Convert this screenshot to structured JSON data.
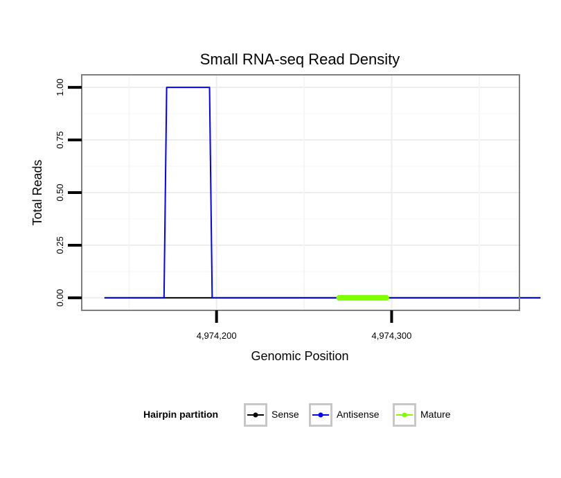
{
  "chart_data": {
    "type": "line",
    "title": "Small RNA-seq Read Density",
    "xlabel": "Genomic Position",
    "ylabel": "Total Reads",
    "xlim": [
      4974123,
      4974373
    ],
    "ylim": [
      -0.0595,
      1.0595
    ],
    "x_ticks": [
      4974200,
      4974300
    ],
    "x_tick_labels": [
      "4,974,200",
      "4,974,300"
    ],
    "y_ticks": [
      0,
      0.25,
      0.5,
      0.75,
      1
    ],
    "y_tick_labels": [
      "0.00",
      "0.25",
      "0.50",
      "0.75",
      "1.00"
    ],
    "grid": true,
    "legend_position": "bottom",
    "legend_title": "Hairpin partition",
    "series": [
      {
        "name": "Sense",
        "color": "#000000",
        "points": [
          [
            4974136,
            0
          ],
          [
            4974385,
            0
          ]
        ]
      },
      {
        "name": "Antisense",
        "color": "#0000ff",
        "points": [
          [
            4974136,
            0
          ],
          [
            4974170,
            0
          ],
          [
            4974171.5,
            1
          ],
          [
            4974196,
            1
          ],
          [
            4974197.5,
            0
          ],
          [
            4974385,
            0
          ]
        ]
      },
      {
        "name": "Mature",
        "color": "#7fff00",
        "points": [
          [
            4974270,
            0
          ],
          [
            4974297,
            0
          ]
        ]
      }
    ]
  }
}
